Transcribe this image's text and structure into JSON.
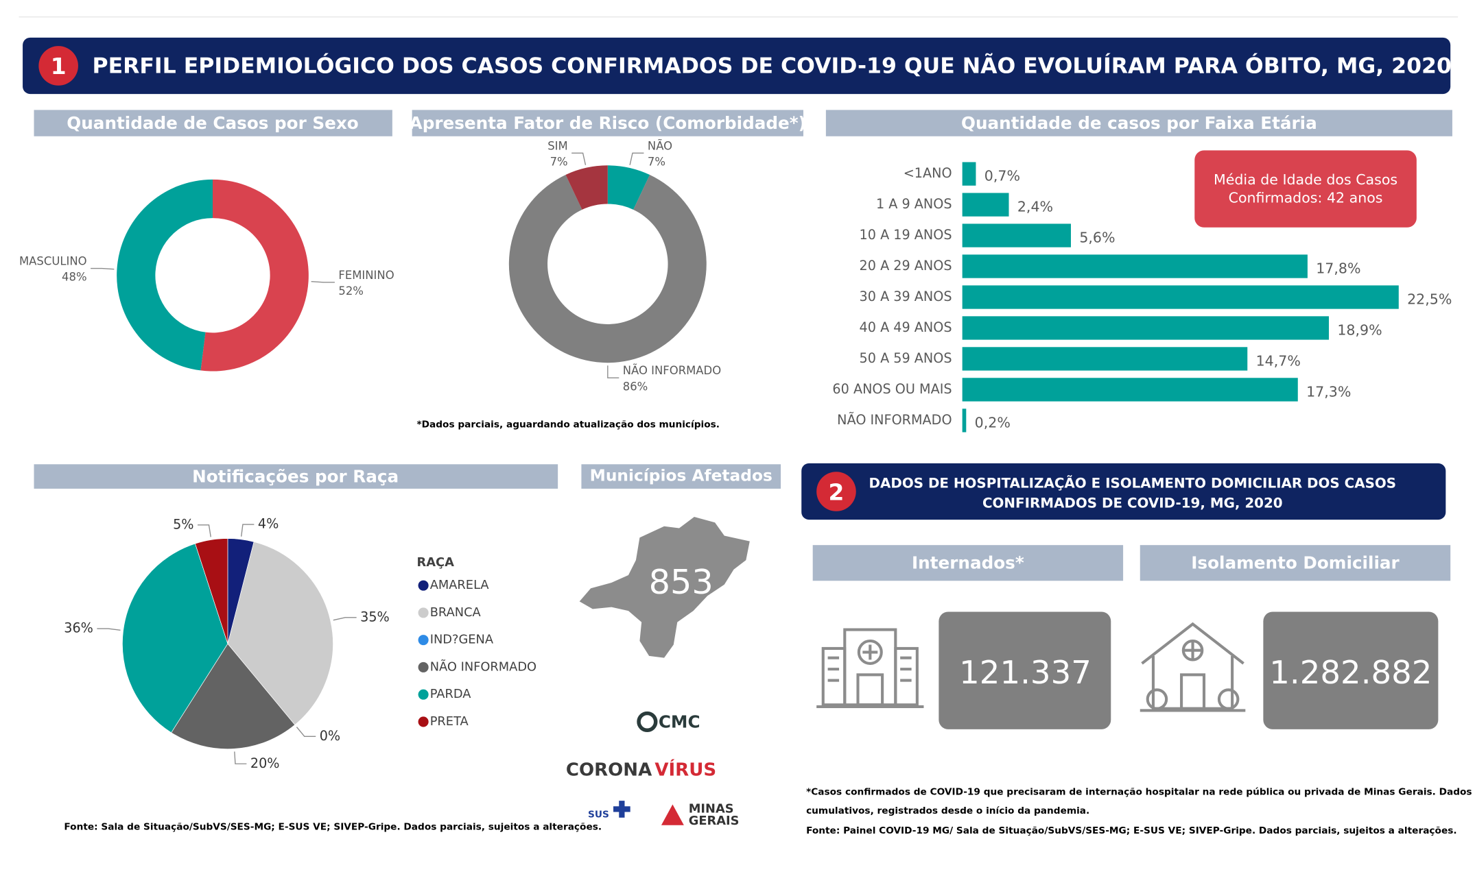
{
  "header": {
    "number": "1",
    "title": "PERFIL EPIDEMIOLÓGICO DOS CASOS CONFIRMADOS DE COVID-19 QUE NÃO EVOLUÍRAM PARA ÓBITO, MG, 2020"
  },
  "chart_data": [
    {
      "type": "donut",
      "title": "Quantidade de Casos por Sexo",
      "categories": [
        "FEMININO",
        "MASCULINO"
      ],
      "values": [
        52,
        48
      ],
      "value_labels": [
        "52%",
        "48%"
      ],
      "colors": [
        "#d9434f",
        "#00a19a"
      ]
    },
    {
      "type": "donut",
      "title": "Apresenta Fator de Risco (Comorbidade*)",
      "categories": [
        "NÃO",
        "NÃO INFORMADO",
        "SIM"
      ],
      "values": [
        7,
        86,
        7
      ],
      "value_labels": [
        "7%",
        "86%",
        "7%"
      ],
      "colors": [
        "#00a19a",
        "#808080",
        "#a5353f"
      ],
      "note": "*Dados parciais, aguardando atualização dos municípios."
    },
    {
      "type": "hbar",
      "title": "Quantidade de casos por Faixa Etária",
      "categories": [
        "<1ANO",
        "1 A 9 ANOS",
        "10 A 19 ANOS",
        "20 A 29 ANOS",
        "30 A 39 ANOS",
        "40 A 49 ANOS",
        "50 A 59 ANOS",
        "60 ANOS OU MAIS",
        "NÃO INFORMADO"
      ],
      "values": [
        0.7,
        2.4,
        5.6,
        17.8,
        22.5,
        18.9,
        14.7,
        17.3,
        0.2
      ],
      "value_labels": [
        "0,7%",
        "2,4%",
        "5,6%",
        "17,8%",
        "22,5%",
        "18,9%",
        "14,7%",
        "17,3%",
        "0,2%"
      ],
      "color": "#00a19a",
      "annotation": [
        "Média de Idade dos Casos",
        "Confirmados: 42 anos"
      ]
    },
    {
      "type": "pie",
      "title": "Notificações por Raça",
      "legend_title": "RAÇA",
      "categories": [
        "AMARELA",
        "BRANCA",
        "IND?GENA",
        "NÃO INFORMADO",
        "PARDA",
        "PRETA"
      ],
      "values": [
        4,
        35,
        0,
        20,
        36,
        5
      ],
      "value_labels": [
        "4%",
        "35%",
        "0%",
        "20%",
        "36%",
        "5%"
      ],
      "colors": [
        "#12207a",
        "#cccccc",
        "#2e8be6",
        "#636363",
        "#00a19a",
        "#a80f14"
      ]
    }
  ],
  "municipios": {
    "title": "Municípios Afetados",
    "value": 853
  },
  "logos": {
    "cmc": "CMC",
    "corona": "CORONA",
    "virus": "VÍRUS",
    "sus": "SUS",
    "minas": "MINAS",
    "gerais": "GERAIS"
  },
  "source1": "Fonte: Sala de Situação/SubVS/SES-MG; E-SUS VE; SIVEP-Gripe. Dados parciais, sujeitos a alterações.",
  "section2": {
    "number": "2",
    "title": [
      "DADOS DE HOSPITALIZAÇÃO E ISOLAMENTO DOMICILIAR DOS CASOS",
      "CONFIRMADOS DE COVID-19, MG, 2020"
    ]
  },
  "kpis": [
    {
      "label": "Internados*",
      "value": "121.337"
    },
    {
      "label": "Isolamento Domiciliar",
      "value": "1.282.882"
    }
  ],
  "footnotes": [
    "*Casos confirmados de COVID-19 que precisaram de internação hospitalar na rede pública ou privada de Minas Gerais. Dados",
    "cumulativos, registrados desde o início da pandemia.",
    "Fonte: Painel COVID-19 MG/ Sala de Situação/SubVS/SES-MG; E-SUS VE; SIVEP-Gripe. Dados parciais, sujeitos a alterações."
  ]
}
